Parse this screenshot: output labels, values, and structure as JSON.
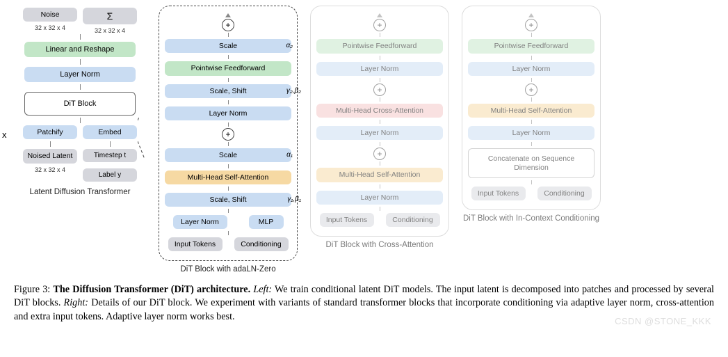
{
  "colors": {
    "gray": "#d5d6dc",
    "blue": "#c9dcf2",
    "green": "#c2e6c7",
    "orange": "#f6d9a3",
    "pink": "#f4c5c5",
    "border": "#bbbbbb",
    "dashed": "#444444",
    "text": "#222222"
  },
  "left": {
    "nx": "N x",
    "noise": "Noise",
    "sigma": "Σ",
    "dim1": "32 x 32 x 4",
    "dim2": "32 x 32 x 4",
    "linear_reshape": "Linear and Reshape",
    "layer_norm": "Layer Norm",
    "dit_block": "DiT Block",
    "patchify": "Patchify",
    "embed": "Embed",
    "noised_latent": "Noised Latent",
    "noised_dim": "32 x 32 x 4",
    "timestep": "Timestep t",
    "label": "Label y",
    "caption": "Latent Diffusion Transformer"
  },
  "main": {
    "scale2": "Scale",
    "alpha2": "α₂",
    "ffw": "Pointwise Feedforward",
    "scaleshift2": "Scale, Shift",
    "gb2": "γ₂,β₂",
    "ln2": "Layer Norm",
    "scale1": "Scale",
    "alpha1": "α₁",
    "attn": "Multi-Head Self-Attention",
    "scaleshift1": "Scale, Shift",
    "gb1": "γ₁,β₁",
    "ln1": "Layer Norm",
    "mlp": "MLP",
    "input": "Input Tokens",
    "cond": "Conditioning",
    "caption": "DiT Block with adaLN-Zero"
  },
  "cross": {
    "ffw": "Pointwise Feedforward",
    "ln3": "Layer Norm",
    "crossattn": "Multi-Head Cross-Attention",
    "ln2": "Layer Norm",
    "selfattn": "Multi-Head Self-Attention",
    "ln1": "Layer Norm",
    "input": "Input Tokens",
    "cond": "Conditioning",
    "caption": "DiT Block with Cross-Attention"
  },
  "incontext": {
    "ffw": "Pointwise Feedforward",
    "ln2": "Layer Norm",
    "selfattn": "Multi-Head Self-Attention",
    "ln1": "Layer Norm",
    "concat": "Concatenate on Sequence Dimension",
    "input": "Input Tokens",
    "cond": "Conditioning",
    "caption": "DiT Block with In-Context Conditioning"
  },
  "figcaption": "Figure 3: The Diffusion Transformer (DiT) architecture. Left: We train conditional latent DiT models. The input latent is decomposed into patches and processed by several DiT blocks. Right: Details of our DiT block. We experiment with variants of standard transformer blocks that incorporate conditioning via adaptive layer norm, cross-attention and extra input tokens. Adaptive layer norm works best.",
  "watermark": "CSDN @STONE_KKK"
}
